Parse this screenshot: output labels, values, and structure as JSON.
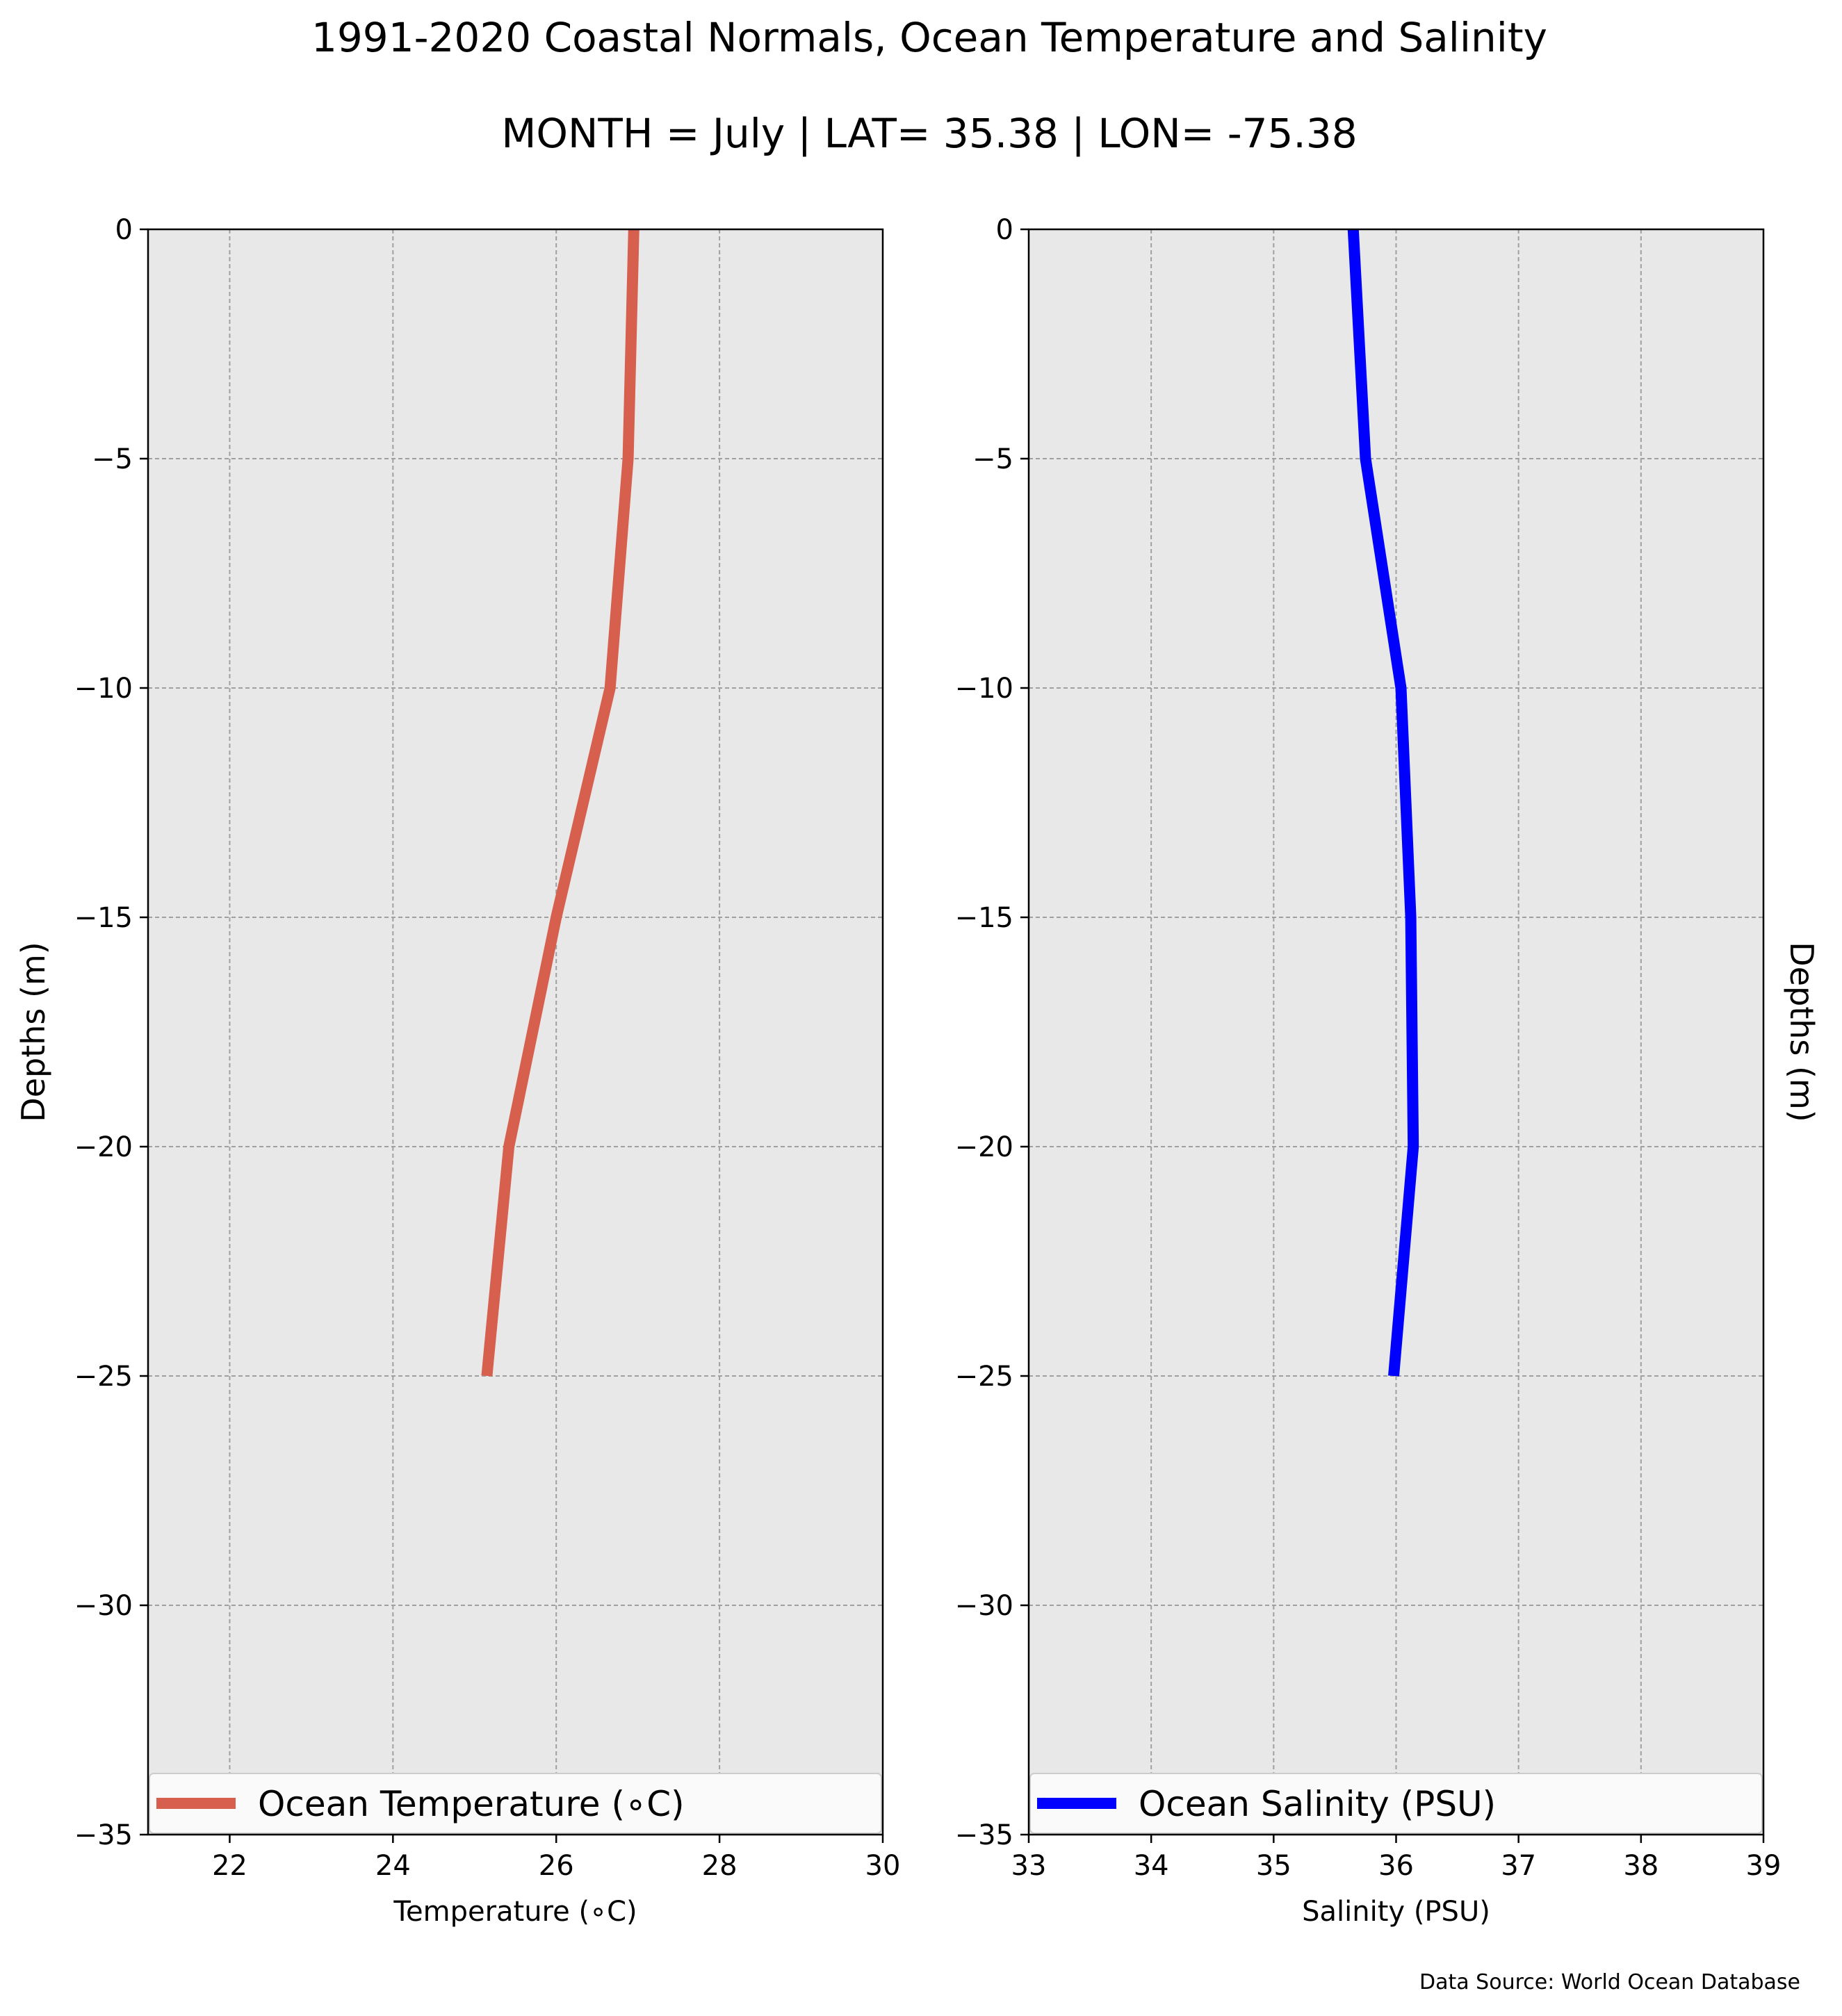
{
  "title": "1991-2020 Coastal Normals, Ocean Temperature and Salinity",
  "subtitle": "MONTH = July | LAT= 35.38 | LON= -75.38",
  "source": "Data Source: World Ocean Database",
  "chart_data": [
    {
      "type": "line",
      "xlabel": "Temperature (∘C)",
      "ylabel": "Depths (m)",
      "xlim": [
        21,
        30
      ],
      "ylim": [
        -35,
        0
      ],
      "xticks": [
        22,
        24,
        26,
        28,
        30
      ],
      "yticks": [
        0,
        -5,
        -10,
        -15,
        -20,
        -25,
        -30,
        -35
      ],
      "xtick_labels": [
        "22",
        "24",
        "26",
        "28",
        "30"
      ],
      "ytick_labels": [
        "0",
        "−5",
        "−10",
        "−15",
        "−20",
        "−25",
        "−30",
        "−35"
      ],
      "grid": true,
      "legend": "bottom",
      "series": [
        {
          "name": "Ocean Temperature (∘C)",
          "color": "#d65f4e",
          "x": [
            26.95,
            26.88,
            26.66,
            26.0,
            25.42,
            25.15
          ],
          "y": [
            0,
            -5,
            -10,
            -15,
            -20,
            -25
          ]
        }
      ]
    },
    {
      "type": "line",
      "xlabel": "Salinity (PSU)",
      "ylabel": "Depths (m)",
      "xlim": [
        33,
        39
      ],
      "ylim": [
        -35,
        0
      ],
      "xticks": [
        33,
        34,
        35,
        36,
        37,
        38,
        39
      ],
      "yticks": [
        0,
        -5,
        -10,
        -15,
        -20,
        -25,
        -30,
        -35
      ],
      "xtick_labels": [
        "33",
        "34",
        "35",
        "36",
        "37",
        "38",
        "39"
      ],
      "ytick_labels": [
        "0",
        "−5",
        "−10",
        "−15",
        "−20",
        "−25",
        "−30",
        "−35"
      ],
      "grid": true,
      "legend": "bottom",
      "series": [
        {
          "name": "Ocean Salinity (PSU)",
          "color": "#0000ff",
          "x": [
            35.65,
            35.75,
            36.04,
            36.12,
            36.14,
            35.98
          ],
          "y": [
            0,
            -5,
            -10,
            -15,
            -20,
            -25
          ]
        }
      ]
    }
  ],
  "colors": {
    "plot_background": "#e8e8e8",
    "grid": "#a0a0a0"
  }
}
